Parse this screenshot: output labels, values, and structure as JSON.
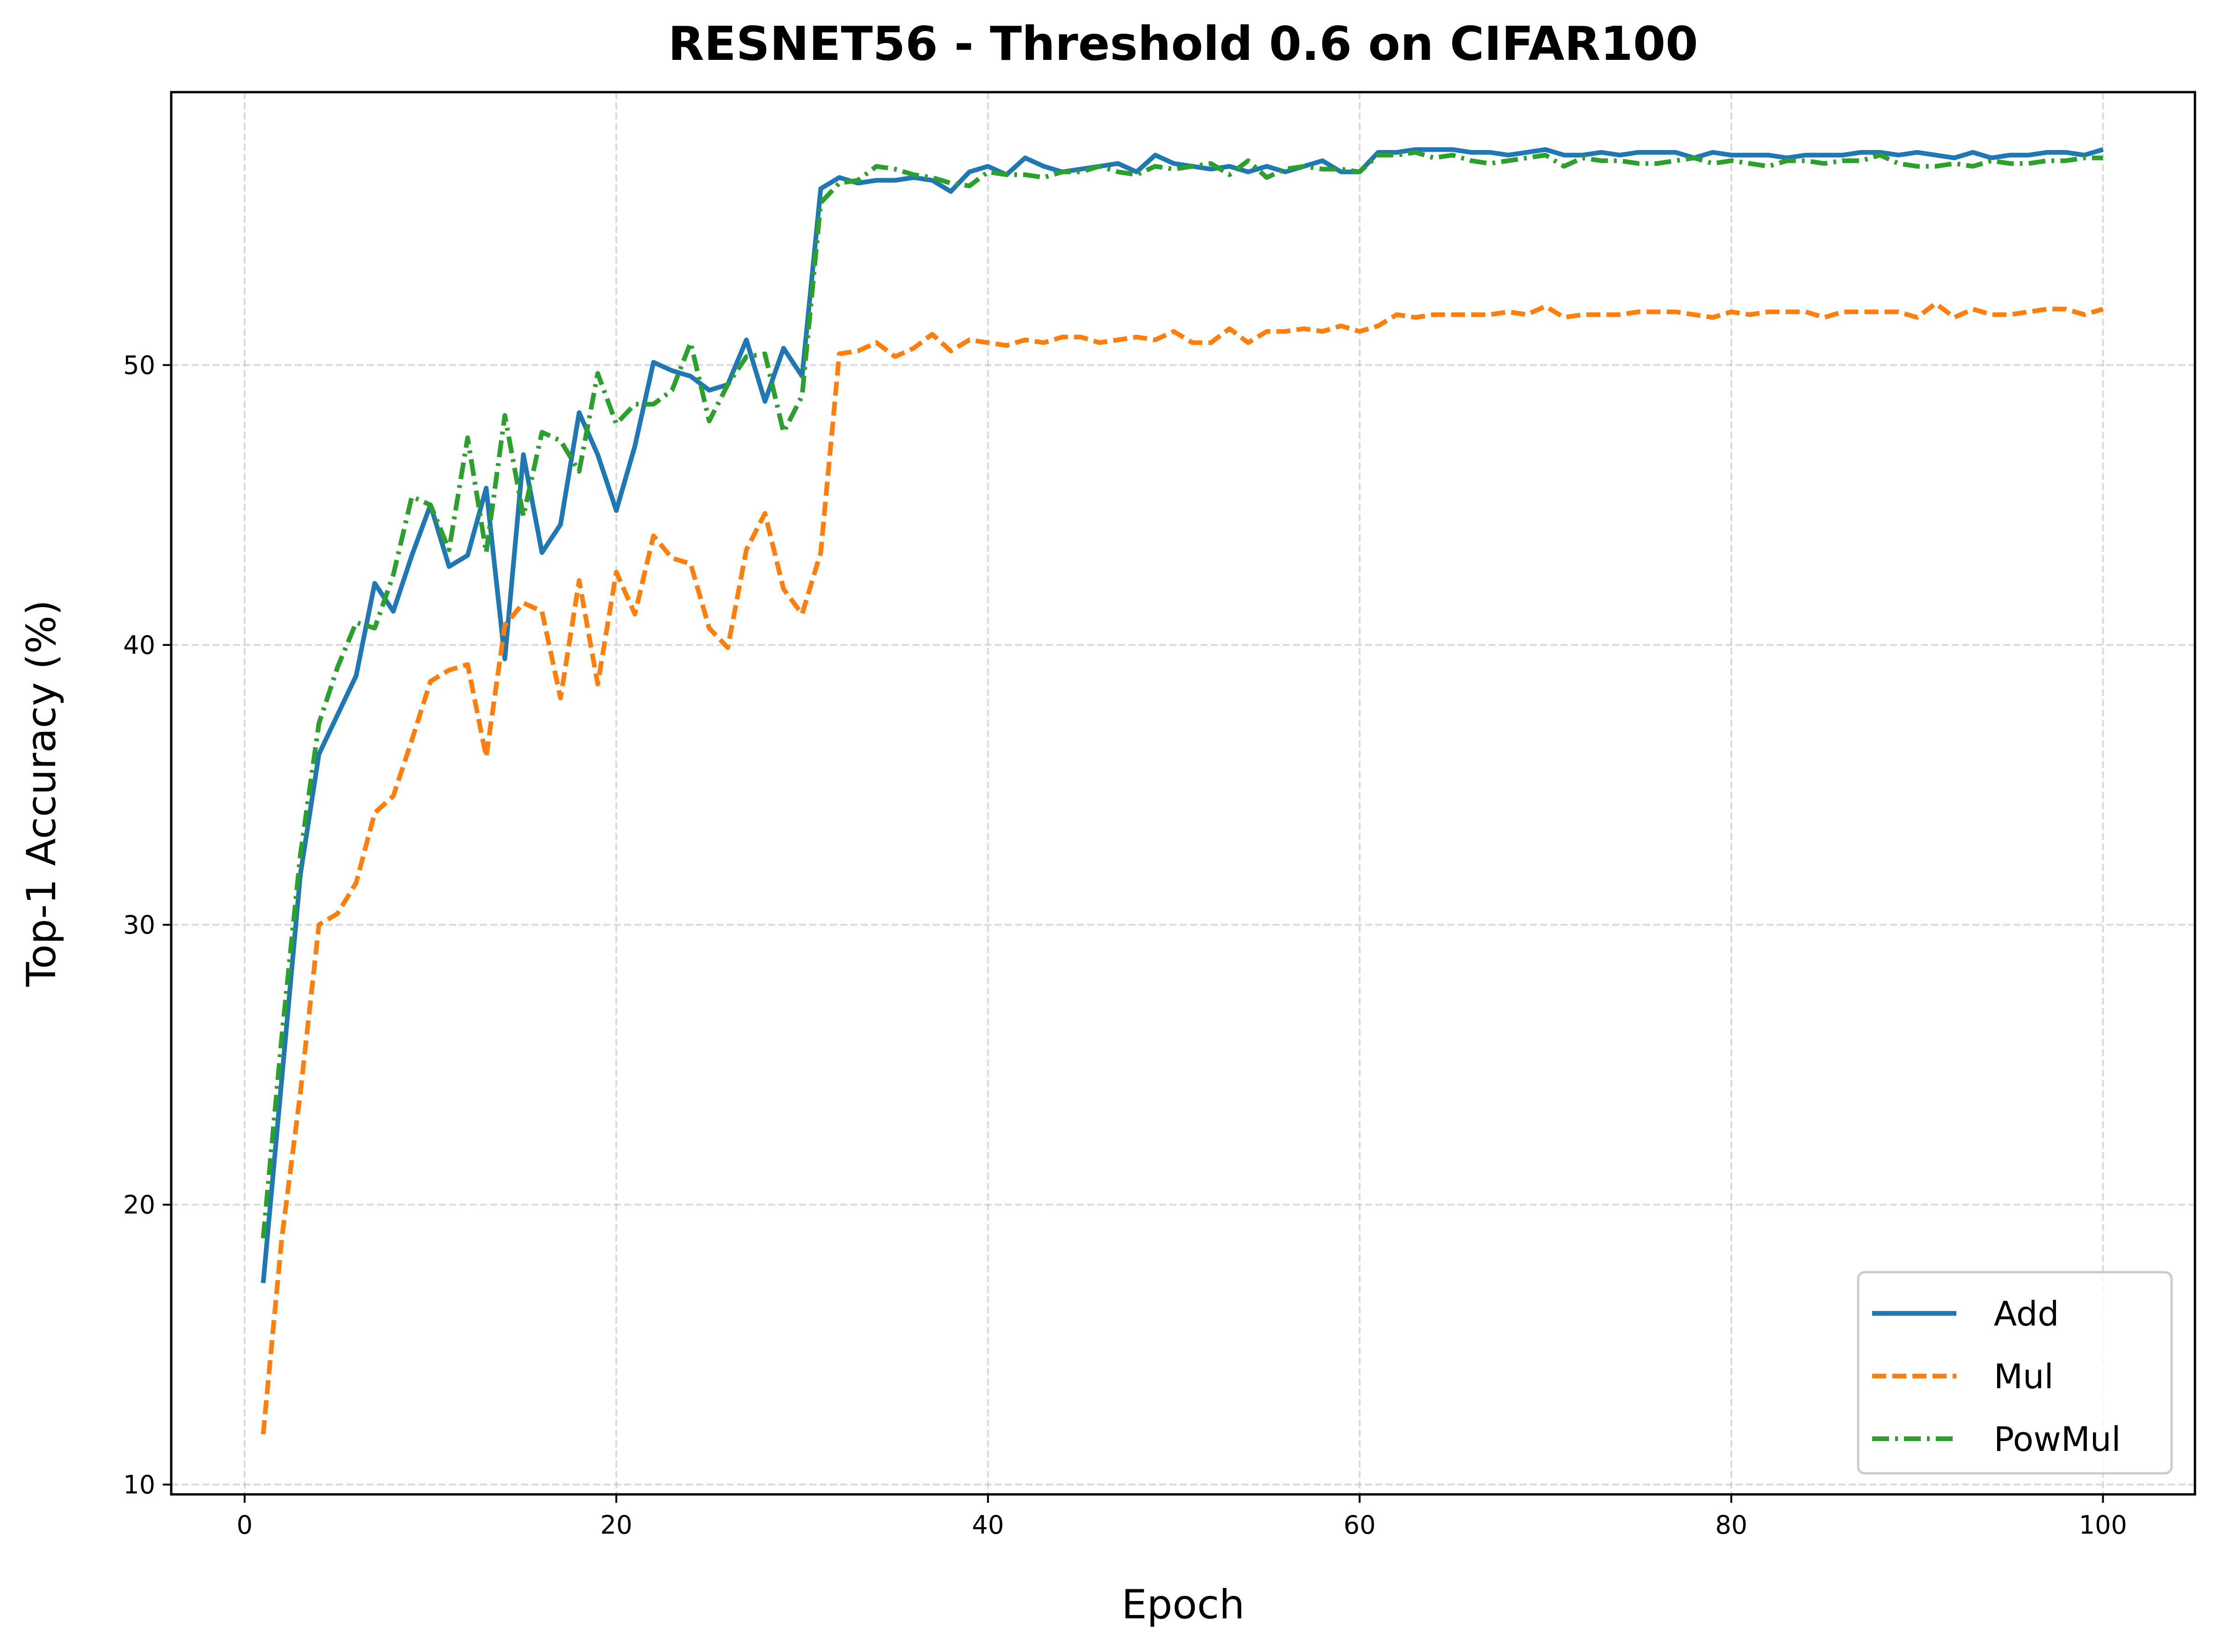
{
  "chart_data": {
    "type": "line",
    "title": "RESNET56 - Threshold 0.6 on CIFAR100",
    "xlabel": "Epoch",
    "ylabel": "Top-1 Accuracy (%)",
    "xlim": [
      -3.95,
      104.95
    ],
    "ylim": [
      9.65,
      59.75
    ],
    "xticks": [
      0,
      20,
      40,
      60,
      80,
      100
    ],
    "yticks": [
      10,
      20,
      30,
      40,
      50
    ],
    "grid": true,
    "legend_position": "lower right",
    "x": [
      1,
      2,
      3,
      4,
      5,
      6,
      7,
      8,
      9,
      10,
      11,
      12,
      13,
      14,
      15,
      16,
      17,
      18,
      19,
      20,
      21,
      22,
      23,
      24,
      25,
      26,
      27,
      28,
      29,
      30,
      31,
      32,
      33,
      34,
      35,
      36,
      37,
      38,
      39,
      40,
      41,
      42,
      43,
      44,
      45,
      46,
      47,
      48,
      49,
      50,
      51,
      52,
      53,
      54,
      55,
      56,
      57,
      58,
      59,
      60,
      61,
      62,
      63,
      64,
      65,
      66,
      67,
      68,
      69,
      70,
      71,
      72,
      73,
      74,
      75,
      76,
      77,
      78,
      79,
      80,
      81,
      82,
      83,
      84,
      85,
      86,
      87,
      88,
      89,
      90,
      91,
      92,
      93,
      94,
      95,
      96,
      97,
      98,
      99,
      100
    ],
    "series": [
      {
        "name": "Add",
        "color": "#1f77b4",
        "dash": "solid",
        "values": [
          17.2,
          24.5,
          31.8,
          36.1,
          37.5,
          38.9,
          42.2,
          41.2,
          43.2,
          45.0,
          42.8,
          43.2,
          45.6,
          39.5,
          46.8,
          43.3,
          44.3,
          48.3,
          46.8,
          44.8,
          47.1,
          50.1,
          49.8,
          49.6,
          49.1,
          49.3,
          50.9,
          48.7,
          50.6,
          49.6,
          56.3,
          56.7,
          56.5,
          56.6,
          56.6,
          56.7,
          56.6,
          56.2,
          56.9,
          57.1,
          56.8,
          57.4,
          57.1,
          56.9,
          57.0,
          57.1,
          57.2,
          56.9,
          57.5,
          57.2,
          57.1,
          57.0,
          57.1,
          56.9,
          57.1,
          56.9,
          57.1,
          57.3,
          56.9,
          56.9,
          57.6,
          57.6,
          57.7,
          57.7,
          57.7,
          57.6,
          57.6,
          57.5,
          57.6,
          57.7,
          57.5,
          57.5,
          57.6,
          57.5,
          57.6,
          57.6,
          57.6,
          57.4,
          57.6,
          57.5,
          57.5,
          57.5,
          57.4,
          57.5,
          57.5,
          57.5,
          57.6,
          57.6,
          57.5,
          57.6,
          57.5,
          57.4,
          57.6,
          57.4,
          57.5,
          57.5,
          57.6,
          57.6,
          57.5,
          57.7
        ]
      },
      {
        "name": "Mul",
        "color": "#ff7f0e",
        "dash": "dashed",
        "values": [
          11.8,
          18.8,
          24.0,
          30.0,
          30.4,
          31.5,
          34.0,
          34.6,
          36.6,
          38.7,
          39.1,
          39.3,
          36.0,
          40.7,
          41.5,
          41.2,
          38.1,
          42.3,
          38.6,
          42.6,
          41.1,
          43.9,
          43.1,
          42.9,
          40.6,
          39.9,
          43.4,
          44.7,
          42.0,
          41.1,
          43.3,
          50.4,
          50.5,
          50.8,
          50.3,
          50.6,
          51.1,
          50.5,
          50.9,
          50.8,
          50.7,
          50.9,
          50.8,
          51.0,
          51.0,
          50.8,
          50.9,
          51.0,
          50.9,
          51.2,
          50.8,
          50.8,
          51.3,
          50.8,
          51.2,
          51.2,
          51.3,
          51.2,
          51.4,
          51.2,
          51.4,
          51.8,
          51.7,
          51.8,
          51.8,
          51.8,
          51.8,
          51.9,
          51.8,
          52.1,
          51.7,
          51.8,
          51.8,
          51.8,
          51.9,
          51.9,
          51.9,
          51.8,
          51.7,
          51.9,
          51.8,
          51.9,
          51.9,
          51.9,
          51.7,
          51.9,
          51.9,
          51.9,
          51.9,
          51.7,
          52.2,
          51.7,
          52.0,
          51.8,
          51.8,
          51.9,
          52.0,
          52.0,
          51.8,
          52.0
        ]
      },
      {
        "name": "PowMul",
        "color": "#2ca02c",
        "dash": "dashdot",
        "values": [
          18.8,
          26.0,
          32.5,
          37.2,
          39.2,
          40.8,
          40.6,
          42.5,
          45.3,
          45.0,
          43.4,
          47.4,
          43.3,
          48.2,
          44.6,
          47.6,
          47.3,
          46.2,
          49.7,
          47.9,
          48.6,
          48.6,
          49.1,
          50.8,
          48.0,
          49.3,
          50.3,
          50.4,
          47.6,
          48.9,
          55.8,
          56.5,
          56.6,
          57.1,
          57.0,
          56.8,
          56.7,
          56.5,
          56.4,
          56.9,
          56.8,
          56.8,
          56.7,
          56.9,
          56.9,
          57.1,
          56.9,
          56.8,
          57.1,
          57.0,
          57.1,
          57.2,
          56.8,
          57.3,
          56.7,
          57.0,
          57.1,
          57.0,
          57.0,
          56.9,
          57.5,
          57.5,
          57.6,
          57.4,
          57.5,
          57.3,
          57.2,
          57.3,
          57.4,
          57.5,
          57.1,
          57.4,
          57.3,
          57.3,
          57.2,
          57.2,
          57.3,
          57.4,
          57.2,
          57.3,
          57.2,
          57.1,
          57.3,
          57.3,
          57.2,
          57.3,
          57.3,
          57.5,
          57.2,
          57.1,
          57.1,
          57.2,
          57.1,
          57.3,
          57.2,
          57.2,
          57.3,
          57.3,
          57.4,
          57.4
        ]
      }
    ]
  }
}
